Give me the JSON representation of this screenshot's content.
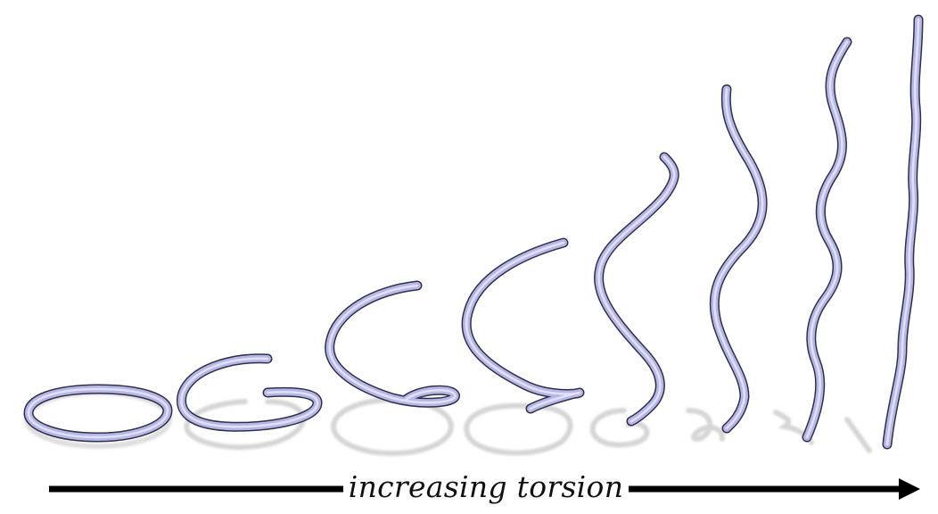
{
  "caption": "increasing torsion",
  "colors": {
    "tube": "#b6b7e8",
    "tube_highlight": "#e9eafb",
    "tube_outline": "#2f3046",
    "shadow": "#d6d6d6",
    "arrow": "#000000",
    "background": "#ffffff"
  },
  "figure": {
    "type": "helix-sequence",
    "helix_count": 8,
    "order": "left-to-right, torsion increases"
  }
}
